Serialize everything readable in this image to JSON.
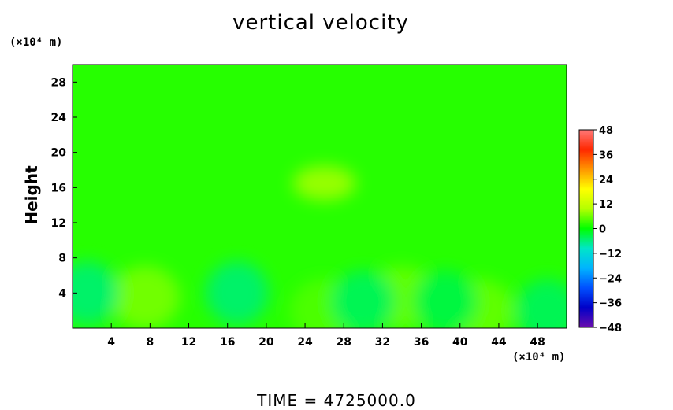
{
  "chart_data": {
    "type": "heatmap",
    "title": "vertical velocity",
    "ylabel": "Height",
    "xlabel": "",
    "x_unit": "(×10⁴ m)",
    "y_unit": "(×10⁴ m)",
    "xlim": [
      0,
      51
    ],
    "ylim": [
      0,
      30
    ],
    "x_ticks": [
      4,
      8,
      12,
      16,
      20,
      24,
      28,
      32,
      36,
      40,
      44,
      48
    ],
    "y_ticks": [
      4,
      8,
      12,
      16,
      20,
      24,
      28
    ],
    "colorbar": {
      "ticks": [
        48,
        36,
        24,
        12,
        0,
        -12,
        -24,
        -36,
        -48
      ],
      "range": [
        -48,
        48
      ],
      "colors": [
        "#6a0dad",
        "#0000c8",
        "#0050ff",
        "#00b4ff",
        "#00e6c8",
        "#00ff00",
        "#b4ff00",
        "#ffff00",
        "#ff9600",
        "#ff2800",
        "#ff7878"
      ]
    },
    "features": [
      {
        "x": 7.5,
        "y": 3.5,
        "value": 6
      },
      {
        "x": 26,
        "y": 16.5,
        "value": 8
      },
      {
        "x": 34,
        "y": 3.5,
        "value": 5
      },
      {
        "x": 42,
        "y": 2,
        "value": 5
      },
      {
        "x": 26,
        "y": 2,
        "value": 4
      },
      {
        "x": 1.5,
        "y": 4,
        "value": -5
      },
      {
        "x": 17,
        "y": 4,
        "value": -5
      },
      {
        "x": 30,
        "y": 3,
        "value": -4
      },
      {
        "x": 49,
        "y": 2,
        "value": -4
      },
      {
        "x": 38.5,
        "y": 3,
        "value": -3
      }
    ],
    "background_value": 2,
    "grid": false
  },
  "footer": "TIME  =  4725000.0"
}
